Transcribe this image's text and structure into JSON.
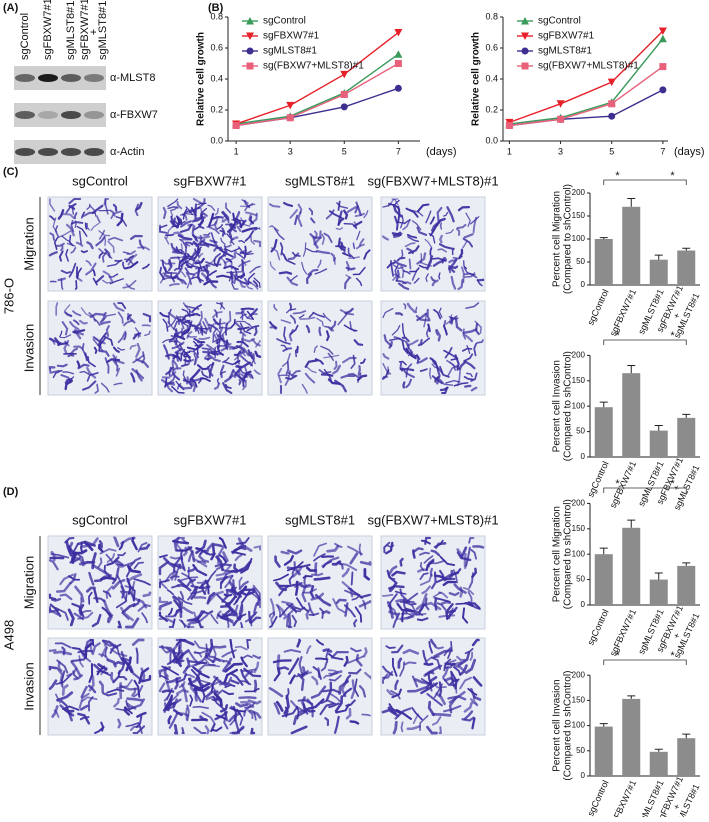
{
  "figure": {
    "panel_labels": [
      "(A)",
      "(B)",
      "(C)",
      "(D)"
    ],
    "blot": {
      "lanes": [
        [
          "sgControl"
        ],
        [
          "sgFBXW7#1"
        ],
        [
          "sgMLST8#1"
        ],
        [
          "sgFBXW7#1",
          "+",
          "sgMLST8#1"
        ]
      ],
      "bands": [
        "α-MLST8",
        "α-FBXW7",
        "α-Actin"
      ]
    },
    "image_columns": [
      "sgControl",
      "sgFBXW7#1",
      "sgMLST8#1",
      "sg(FBXW7+MLST8)#1"
    ],
    "image_rows": [
      "Migration",
      "Invasion"
    ],
    "cell_lines": [
      "786-O",
      "A498"
    ]
  },
  "chart_data": [
    {
      "type": "line",
      "ylabel": "Relative cell growth",
      "xlabel": "(days)",
      "x": [
        1,
        3,
        5,
        7
      ],
      "xlim": [
        0.7,
        7.8
      ],
      "xticks": [
        1,
        3,
        5,
        7
      ],
      "ylim": [
        0,
        0.8
      ],
      "yticks": [
        {
          "value": 0,
          "label": "0.0"
        },
        0.2,
        0.4,
        0.6,
        0.8
      ],
      "series": [
        {
          "name": "sgControl",
          "color": "#3a9a5a",
          "marker": "triangle-up",
          "values": [
            0.11,
            0.16,
            0.31,
            0.56
          ]
        },
        {
          "name": "sgFBXW7#1",
          "color": "#e8202a",
          "marker": "triangle-down",
          "values": [
            0.11,
            0.23,
            0.43,
            0.7
          ]
        },
        {
          "name": "sgMLST8#1",
          "color": "#3d2f8f",
          "marker": "circle",
          "values": [
            0.1,
            0.15,
            0.22,
            0.34
          ]
        },
        {
          "name": "sg(FBXW7+MLST8)#1",
          "color": "#e8607a",
          "marker": "square",
          "values": [
            0.1,
            0.15,
            0.3,
            0.5
          ]
        }
      ]
    },
    {
      "type": "line",
      "ylabel": "Relative cell growth",
      "xlabel": "(days)",
      "x": [
        1,
        3,
        5,
        7
      ],
      "xlim": [
        0.75,
        7.2
      ],
      "xticks": [
        1,
        3,
        5,
        7
      ],
      "ylim": [
        0,
        0.8
      ],
      "yticks": [
        {
          "value": 0,
          "label": "0.0"
        },
        0.2,
        0.4,
        0.6,
        0.8
      ],
      "series": [
        {
          "name": "sgControl",
          "color": "#3a9a5a",
          "marker": "triangle-up",
          "values": [
            0.11,
            0.15,
            0.25,
            0.66
          ]
        },
        {
          "name": "sgFBXW7#1",
          "color": "#e8202a",
          "marker": "triangle-down",
          "values": [
            0.12,
            0.24,
            0.38,
            0.71
          ]
        },
        {
          "name": "sgMLST8#1",
          "color": "#3d2f8f",
          "marker": "circle",
          "values": [
            0.1,
            0.14,
            0.16,
            0.33
          ]
        },
        {
          "name": "sg(FBXW7+MLST8)#1",
          "color": "#e8607a",
          "marker": "square",
          "values": [
            0.1,
            0.14,
            0.24,
            0.48
          ]
        }
      ]
    },
    {
      "type": "bar",
      "ylabel": [
        "Percent cell Migration",
        "(Compared to shControl)"
      ],
      "categories": [
        "sgControl",
        "sgFBXW7#1",
        "sgMLST8#1",
        [
          "sgFBXW7#1",
          "+",
          "sgMLST8#1"
        ]
      ],
      "values": [
        100,
        170,
        55,
        75
      ],
      "errors": [
        3,
        18,
        10,
        5
      ],
      "color": "#8c8c8c",
      "ylim": [
        0,
        250
      ],
      "yticks": [
        0,
        50,
        100,
        150,
        200
      ],
      "annotations": [
        "*",
        "*"
      ]
    },
    {
      "type": "bar",
      "ylabel": [
        "Percent cell Invasion",
        "(Compared to shControl)"
      ],
      "categories": [
        "sgControl",
        "sgFBXW7#1",
        "sgMLST8#1",
        [
          "sgFBXW7#1",
          "+",
          "sgMLST8#1"
        ]
      ],
      "values": [
        98,
        165,
        52,
        77
      ],
      "errors": [
        10,
        15,
        10,
        7
      ],
      "color": "#8c8c8c",
      "ylim": [
        0,
        250
      ],
      "yticks": [
        0,
        50,
        100,
        150,
        200
      ],
      "annotations": [
        "*",
        "*"
      ]
    },
    {
      "type": "bar",
      "ylabel": [
        "Percent cell Migration",
        "(Compared to shControl)"
      ],
      "categories": [
        "sgControl",
        "sgFBXW7#1",
        "sgMLST8#1",
        [
          "sgFBXW7#1",
          "+",
          "sgMLST8#1"
        ]
      ],
      "values": [
        100,
        152,
        50,
        77
      ],
      "errors": [
        12,
        15,
        13,
        6
      ],
      "color": "#8c8c8c",
      "ylim": [
        0,
        250
      ],
      "yticks": [
        0,
        50,
        100,
        150,
        200
      ],
      "annotations": [
        "*",
        "*"
      ]
    },
    {
      "type": "bar",
      "ylabel": [
        "Percent cell Invasion",
        "(Compared to shControl)"
      ],
      "categories": [
        "sgControl",
        "sgFBXW7#1",
        "sgMLST8#1",
        [
          "sgFBXW7#1",
          "+",
          "sgMLST8#1"
        ]
      ],
      "values": [
        98,
        153,
        48,
        75
      ],
      "errors": [
        6,
        6,
        5,
        8
      ],
      "color": "#8c8c8c",
      "ylim": [
        0,
        250
      ],
      "yticks": [
        0,
        50,
        100,
        150,
        200
      ],
      "annotations": [
        "*",
        "*"
      ]
    }
  ]
}
